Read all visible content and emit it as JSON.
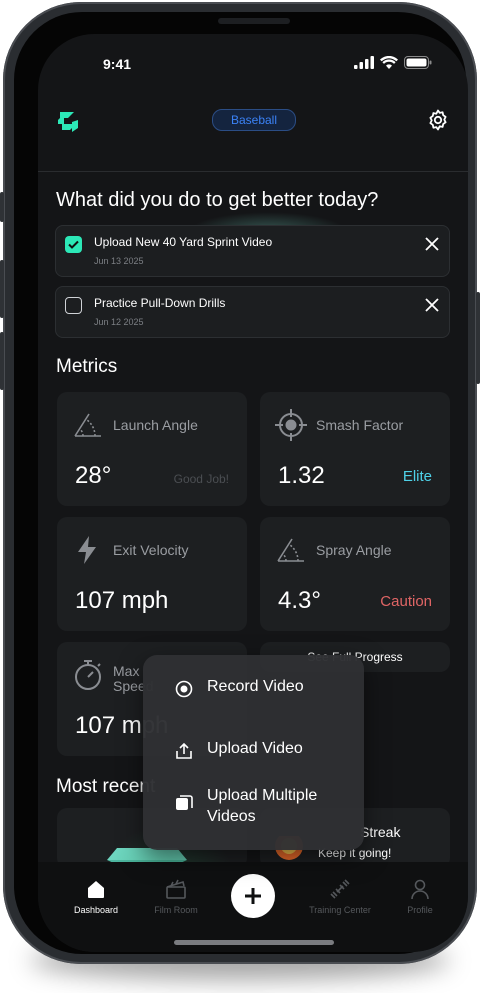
{
  "status": {
    "time": "9:41"
  },
  "header": {
    "sport": "Baseball"
  },
  "prompt": {
    "question": "What did you do to get better today?"
  },
  "tasks": [
    {
      "title": "Upload New 40 Yard Sprint Video",
      "date": "Jun 13 2025",
      "checked": true
    },
    {
      "title": "Practice Pull-Down Drills",
      "date": "Jun 12 2025",
      "checked": false
    }
  ],
  "metrics": {
    "heading": "Metrics",
    "cards": [
      {
        "label": "Launch Angle",
        "value": "28°",
        "status": "Good Job!",
        "status_color": "#4b4e52",
        "icon": "angle-icon"
      },
      {
        "label": "Smash Factor",
        "value": "1.32",
        "status": "Elite",
        "status_color": "#4fd1e8",
        "icon": "crosshair-icon"
      },
      {
        "label": "Exit Velocity",
        "value": "107 mph",
        "status": "",
        "status_color": "",
        "icon": "lightning-icon"
      },
      {
        "label": "Spray Angle",
        "value": "4.3°",
        "status": "Caution",
        "status_color": "#e06565",
        "icon": "angle-icon"
      },
      {
        "label": "Max Speed",
        "value": "107 mph",
        "status": "",
        "status_color": "",
        "icon": "stopwatch-icon"
      }
    ],
    "progress_label": "See Full Progress"
  },
  "recent": {
    "heading": "Most recent",
    "streak_title": "Streak",
    "streak_sub": "Keep it going!"
  },
  "menu": {
    "items": [
      {
        "label": "Record Video",
        "icon": "record-icon"
      },
      {
        "label": "Upload Video",
        "icon": "upload-icon"
      },
      {
        "label": "Upload Multiple Videos",
        "icon": "multi-upload-icon"
      }
    ]
  },
  "nav": {
    "items": [
      {
        "label": "Dashboard",
        "icon": "home-icon",
        "active": true
      },
      {
        "label": "Film Room",
        "icon": "clapperboard-icon",
        "active": false
      },
      {
        "label": "Training Center",
        "icon": "dumbbell-icon",
        "active": false
      },
      {
        "label": "Profile",
        "icon": "person-icon",
        "active": false
      }
    ]
  },
  "colors": {
    "accent": "#2ce8b7",
    "background": "#141517",
    "card": "#1d1f21",
    "pill_text": "#3b82f6"
  }
}
